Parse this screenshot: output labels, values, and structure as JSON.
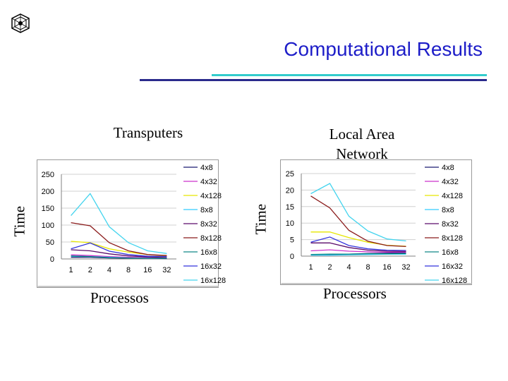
{
  "slide": {
    "title": "Computational Results"
  },
  "legend_colors": {
    "4x8": "#1a1a70",
    "4x32": "#cc33cc",
    "4x128": "#e6e600",
    "8x8": "#33ccff",
    "8x32": "#5a0a6a",
    "8x128": "#8a1a1a",
    "16x8": "#118888",
    "16x32": "#3333dd",
    "16x128": "#44d4ee"
  },
  "chart_data": [
    {
      "type": "line",
      "title": "Transputers",
      "ylabel": "Time",
      "xlabel": "Processos",
      "categories": [
        "1",
        "2",
        "4",
        "8",
        "16",
        "32"
      ],
      "yticks": [
        "0",
        "50",
        "100",
        "150",
        "200",
        "250"
      ],
      "ylim": [
        0,
        250
      ],
      "grid": true,
      "legend": "right",
      "series": [
        {
          "name": "4x8",
          "values": [
            5,
            5,
            3,
            2,
            2,
            1
          ]
        },
        {
          "name": "4x32",
          "values": [
            12,
            10,
            7,
            5,
            4,
            3
          ]
        },
        {
          "name": "4x128",
          "values": [
            52,
            48,
            30,
            20,
            13,
            9
          ]
        },
        {
          "name": "8x8",
          "values": [
            8,
            7,
            5,
            3,
            2,
            2
          ]
        },
        {
          "name": "8x32",
          "values": [
            27,
            24,
            15,
            9,
            6,
            4
          ]
        },
        {
          "name": "8x128",
          "values": [
            107,
            98,
            48,
            24,
            13,
            10
          ]
        },
        {
          "name": "16x8",
          "values": [
            9,
            7,
            4,
            3,
            2,
            2
          ]
        },
        {
          "name": "16x32",
          "values": [
            30,
            47,
            23,
            13,
            8,
            7
          ]
        },
        {
          "name": "16x128",
          "values": [
            128,
            193,
            95,
            48,
            24,
            16
          ]
        }
      ]
    },
    {
      "type": "line",
      "title": "Local Area Network",
      "ylabel": "Time",
      "xlabel": "Processors",
      "categories": [
        "1",
        "2",
        "4",
        "8",
        "16",
        "32"
      ],
      "yticks": [
        "0",
        "5",
        "10",
        "15",
        "20",
        "25"
      ],
      "ylim": [
        0,
        25
      ],
      "grid": true,
      "legend": "right",
      "series": [
        {
          "name": "4x8",
          "values": [
            0.4,
            0.4,
            0.6,
            0.8,
            0.9,
            1.0
          ]
        },
        {
          "name": "4x32",
          "values": [
            1.6,
            1.9,
            1.5,
            1.3,
            1.2,
            1.2
          ]
        },
        {
          "name": "4x128",
          "values": [
            7.3,
            7.3,
            5.6,
            4.2,
            3.3,
            3.0
          ]
        },
        {
          "name": "8x8",
          "values": [
            0.3,
            0.3,
            0.4,
            0.5,
            0.6,
            0.6
          ]
        },
        {
          "name": "8x32",
          "values": [
            4.0,
            4.0,
            2.6,
            1.8,
            1.5,
            1.4
          ]
        },
        {
          "name": "8x128",
          "values": [
            18.2,
            14.6,
            7.8,
            4.5,
            3.2,
            2.9
          ]
        },
        {
          "name": "16x8",
          "values": [
            0.5,
            0.6,
            0.6,
            0.7,
            0.7,
            0.8
          ]
        },
        {
          "name": "16x32",
          "values": [
            4.2,
            5.8,
            3.2,
            2.2,
            1.8,
            1.7
          ]
        },
        {
          "name": "16x128",
          "values": [
            18.9,
            22.0,
            12.1,
            7.6,
            5.2,
            4.6
          ]
        }
      ]
    }
  ]
}
